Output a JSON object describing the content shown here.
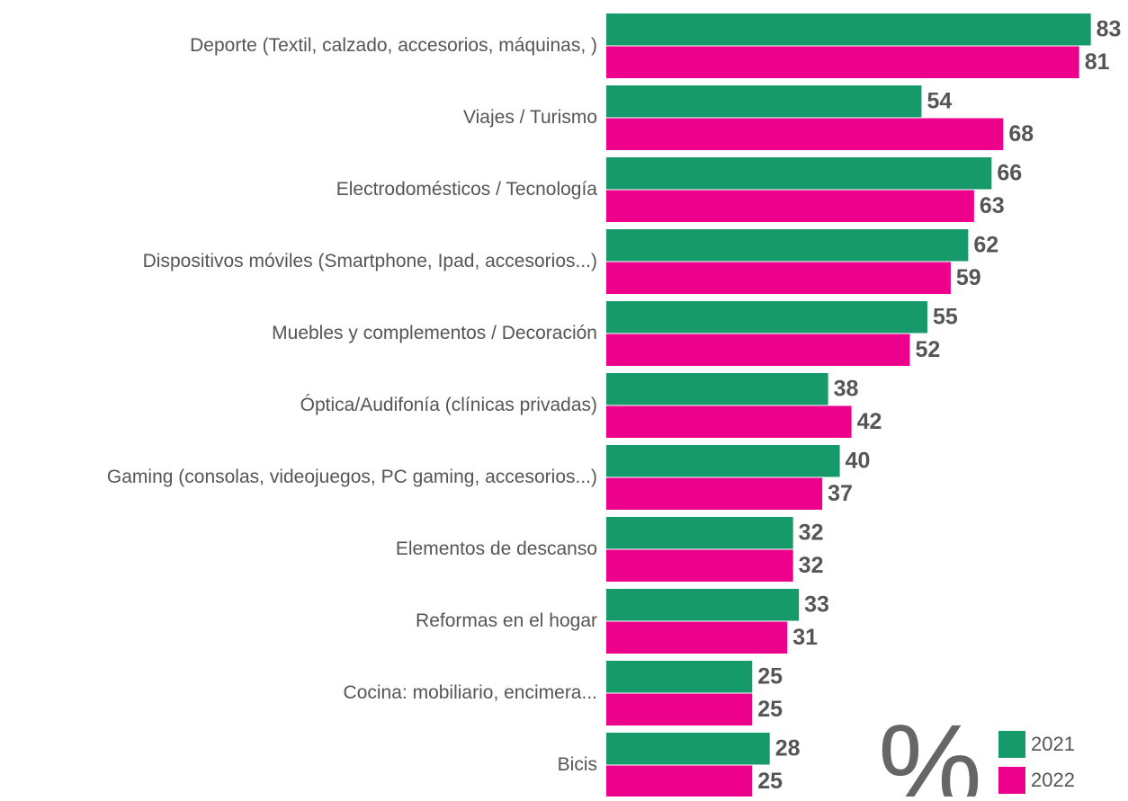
{
  "chart_data": {
    "type": "barh",
    "categories": [
      "Deporte (Textil, calzado, accesorios, máquinas, )",
      "Viajes / Turismo",
      "Electrodomésticos / Tecnología",
      "Dispositivos móviles (Smartphone, Ipad, accesorios...)",
      "Muebles y complementos / Decoración",
      "Óptica/Audifonía (clínicas privadas)",
      "Gaming (consolas, videojuegos, PC gaming, accesorios...)",
      "Elementos de descanso",
      "Reformas en el hogar",
      "Cocina: mobiliario, encimera...",
      "Bicis"
    ],
    "series": [
      {
        "name": "2021",
        "color": "#179a6a",
        "values": [
          83,
          54,
          66,
          62,
          55,
          38,
          40,
          32,
          33,
          25,
          28
        ]
      },
      {
        "name": "2022",
        "color": "#ec008c",
        "values": [
          81,
          68,
          63,
          59,
          52,
          42,
          37,
          32,
          31,
          25,
          25
        ]
      }
    ],
    "annotation": "%",
    "legend": "bottom-right"
  }
}
